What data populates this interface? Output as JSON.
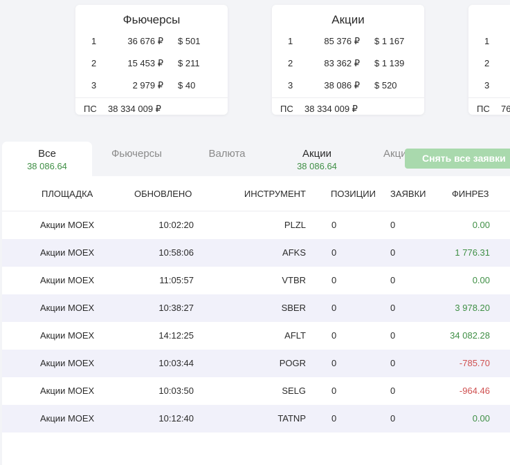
{
  "cards": [
    {
      "title": "Фьючерсы",
      "rows": [
        {
          "rank": "1",
          "rub": "36 676 ₽",
          "usd": "$ 501"
        },
        {
          "rank": "2",
          "rub": "15 453 ₽",
          "usd": "$ 211"
        },
        {
          "rank": "3",
          "rub": "2 979 ₽",
          "usd": "$ 40"
        }
      ],
      "footer_label": "ПС",
      "footer_value": "38 334 009 ₽"
    },
    {
      "title": "Акции",
      "rows": [
        {
          "rank": "1",
          "rub": "85 376 ₽",
          "usd": "$ 1 167"
        },
        {
          "rank": "2",
          "rub": "83 362 ₽",
          "usd": "$ 1 139"
        },
        {
          "rank": "3",
          "rub": "38 086 ₽",
          "usd": "$ 520"
        }
      ],
      "footer_label": "ПС",
      "footer_value": "38 334 009 ₽"
    },
    {
      "title": "",
      "rows": [
        {
          "rank": "1",
          "rub": "",
          "usd": ""
        },
        {
          "rank": "2",
          "rub": "",
          "usd": ""
        },
        {
          "rank": "3",
          "rub": "",
          "usd": ""
        }
      ],
      "footer_label": "ПС",
      "footer_value": "76"
    }
  ],
  "tabs": [
    {
      "label": "Все",
      "sum": "38 086.64"
    },
    {
      "label": "Фьючерсы",
      "sum": ""
    },
    {
      "label": "Валюта",
      "sum": ""
    },
    {
      "label": "Акции",
      "sum": "38 086.64"
    },
    {
      "label": "Акции US",
      "sum": ""
    }
  ],
  "cancel_button": "Снять все заявки",
  "table": {
    "headers": {
      "venue": "ПЛОЩАДКА",
      "updated": "ОБНОВЛЕНО",
      "instrument": "ИНСТРУМЕНТ",
      "positions": "ПОЗИЦИИ",
      "orders": "ЗАЯВКИ",
      "pnl": "ФИНРЕЗ"
    },
    "rows": [
      {
        "venue": "Акции MOEX",
        "updated": "10:02:20",
        "instrument": "PLZL",
        "positions": "0",
        "orders": "0",
        "pnl": "0.00"
      },
      {
        "venue": "Акции MOEX",
        "updated": "10:58:06",
        "instrument": "AFKS",
        "positions": "0",
        "orders": "0",
        "pnl": "1 776.31"
      },
      {
        "venue": "Акции MOEX",
        "updated": "11:05:57",
        "instrument": "VTBR",
        "positions": "0",
        "orders": "0",
        "pnl": "0.00"
      },
      {
        "venue": "Акции MOEX",
        "updated": "10:38:27",
        "instrument": "SBER",
        "positions": "0",
        "orders": "0",
        "pnl": "3 978.20"
      },
      {
        "venue": "Акции MOEX",
        "updated": "14:12:25",
        "instrument": "AFLT",
        "positions": "0",
        "orders": "0",
        "pnl": "34 082.28"
      },
      {
        "venue": "Акции MOEX",
        "updated": "10:03:44",
        "instrument": "POGR",
        "positions": "0",
        "orders": "0",
        "pnl": "-785.70"
      },
      {
        "venue": "Акции MOEX",
        "updated": "10:03:50",
        "instrument": "SELG",
        "positions": "0",
        "orders": "0",
        "pnl": "-964.46"
      },
      {
        "venue": "Акции MOEX",
        "updated": "10:12:40",
        "instrument": "TATNP",
        "positions": "0",
        "orders": "0",
        "pnl": "0.00"
      }
    ]
  },
  "colors": {
    "positive": "#3f8f45",
    "negative": "#cf5050",
    "button": "#a9d9ad"
  }
}
